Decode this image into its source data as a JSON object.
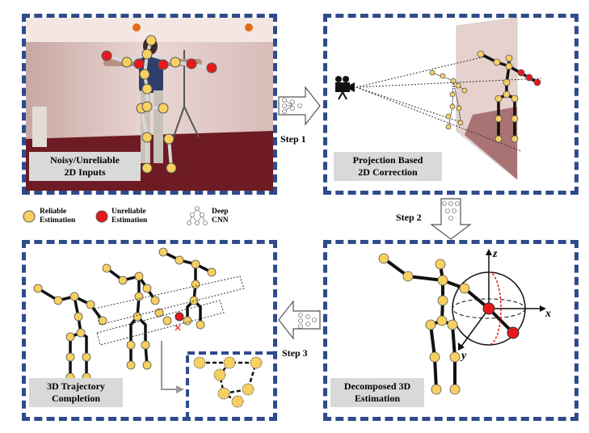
{
  "panels": {
    "inputs": {
      "caption_line1": "Noisy/Unreliable",
      "caption_line2": "2D Inputs"
    },
    "correction": {
      "caption_line1": "Projection Based",
      "caption_line2": "2D Correction"
    },
    "estimation": {
      "caption_line1": "Decomposed 3D",
      "caption_line2": "Estimation"
    },
    "completion": {
      "caption_line1": "3D Trajectory",
      "caption_line2": "Completion"
    }
  },
  "steps": {
    "step1": "Step 1",
    "step2": "Step 2",
    "step3": "Step 3"
  },
  "legend": {
    "reliable_line1": "Reliable",
    "reliable_line2": "Estimation",
    "unreliable_line1": "Unreliable",
    "unreliable_line2": "Estimation",
    "cnn_line1": "Deep",
    "cnn_line2": "CNN"
  },
  "axes": {
    "x": "x",
    "y": "y",
    "z": "z"
  },
  "colors": {
    "reliable": "#f7d060",
    "unreliable": "#e8191b",
    "border": "#2e4b8c",
    "caption_bg": "#d9d9d9"
  }
}
